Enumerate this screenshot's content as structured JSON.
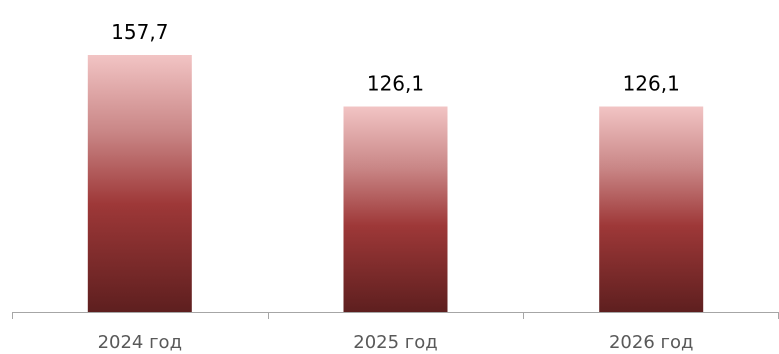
{
  "chart_data": {
    "type": "bar",
    "title": "",
    "xlabel": "",
    "ylabel": "",
    "categories": [
      "2024 год",
      "2025 год",
      "2026 год"
    ],
    "values": [
      157.7,
      126.1,
      126.1
    ],
    "value_labels": [
      "157,7",
      "126,1",
      "126,1"
    ],
    "ylim": [
      0,
      160
    ],
    "grid": false,
    "legend": "none",
    "colors": {
      "bar_top": "#f2c4c4",
      "bar_mid_upper": "#c98686",
      "bar_mid": "#9e3838",
      "bar_bottom": "#5e1f1f",
      "axis": "#a6a6a6"
    }
  }
}
